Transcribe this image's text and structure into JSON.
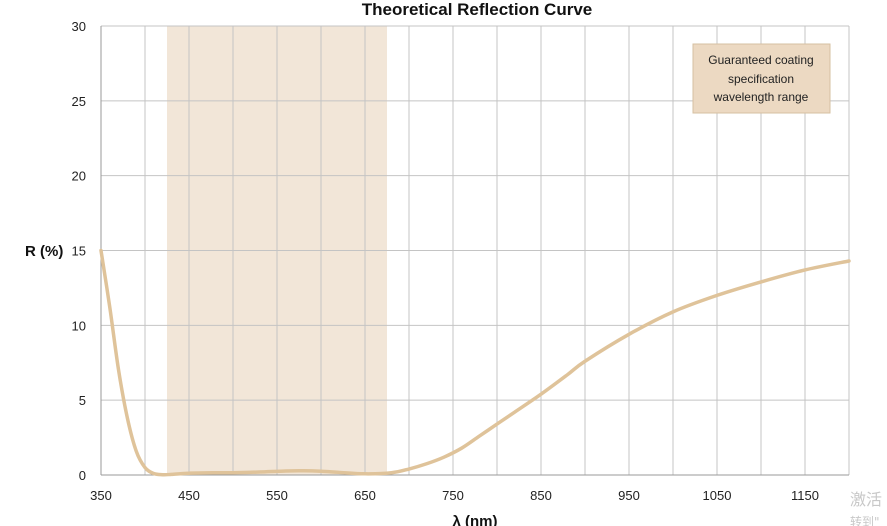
{
  "chart_data": {
    "type": "line",
    "title": "Theoretical Reflection Curve",
    "xlabel": "λ (nm)",
    "ylabel": "R (%)",
    "xlim": [
      350,
      1200
    ],
    "ylim": [
      0,
      30
    ],
    "x_ticks": [
      "350",
      "450",
      "550",
      "650",
      "750",
      "850",
      "950",
      "1050",
      "1150"
    ],
    "y_ticks": [
      "0",
      "5",
      "10",
      "15",
      "20",
      "25",
      "30"
    ],
    "grid": true,
    "shaded_band": {
      "x_start": 425,
      "x_end": 675,
      "color": "#f2e6d8"
    },
    "legend": {
      "label": "Guaranteed coating specification wavelength range",
      "lines": [
        "Guaranteed coating",
        "specification",
        "wavelength range"
      ],
      "position": "top-right",
      "color": "#ecd9c2"
    },
    "series": [
      {
        "color": "#dfc39a",
        "x": [
          350,
          360,
          370,
          380,
          390,
          400,
          410,
          420,
          430,
          450,
          480,
          500,
          530,
          560,
          580,
          600,
          620,
          650,
          680,
          700,
          720,
          740,
          760,
          780,
          800,
          820,
          850,
          880,
          900,
          950,
          1000,
          1050,
          1100,
          1150,
          1200
        ],
        "y": [
          15.0,
          11.2,
          7.0,
          3.8,
          1.6,
          0.5,
          0.1,
          0.02,
          0.04,
          0.12,
          0.15,
          0.15,
          0.2,
          0.27,
          0.28,
          0.25,
          0.18,
          0.08,
          0.15,
          0.4,
          0.75,
          1.2,
          1.8,
          2.6,
          3.4,
          4.2,
          5.4,
          6.7,
          7.6,
          9.4,
          10.9,
          12.0,
          12.9,
          13.7,
          14.3
        ]
      }
    ]
  },
  "watermark": {
    "line1": "激活",
    "line2": "转到\""
  }
}
